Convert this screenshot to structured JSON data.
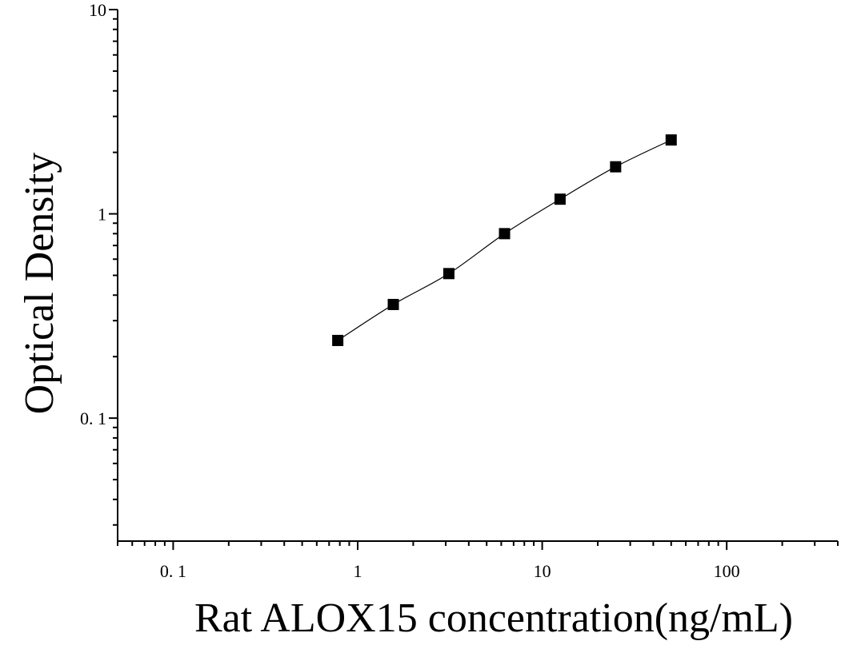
{
  "chart_data": {
    "type": "scatter",
    "title": "",
    "xlabel": "Rat ALOX15 concentration(ng/mL)",
    "ylabel": "Optical Density",
    "x_scale": "log",
    "y_scale": "log",
    "xlim": [
      0.05,
      400
    ],
    "ylim": [
      0.025,
      10
    ],
    "x_ticks": [
      {
        "value": 0.1,
        "label": "0. 1"
      },
      {
        "value": 1,
        "label": "1"
      },
      {
        "value": 10,
        "label": "10"
      },
      {
        "value": 100,
        "label": "100"
      }
    ],
    "y_ticks": [
      {
        "value": 0.1,
        "label": "0. 1"
      },
      {
        "value": 1,
        "label": "1"
      },
      {
        "value": 10,
        "label": "10"
      }
    ],
    "grid": false,
    "legend": "none",
    "series": [
      {
        "marker": "square",
        "fit_line": true,
        "color": "#000000",
        "x": [
          0.78,
          1.56,
          3.12,
          6.25,
          12.5,
          25,
          50
        ],
        "y": [
          0.24,
          0.36,
          0.51,
          0.8,
          1.18,
          1.7,
          2.3
        ]
      }
    ]
  }
}
